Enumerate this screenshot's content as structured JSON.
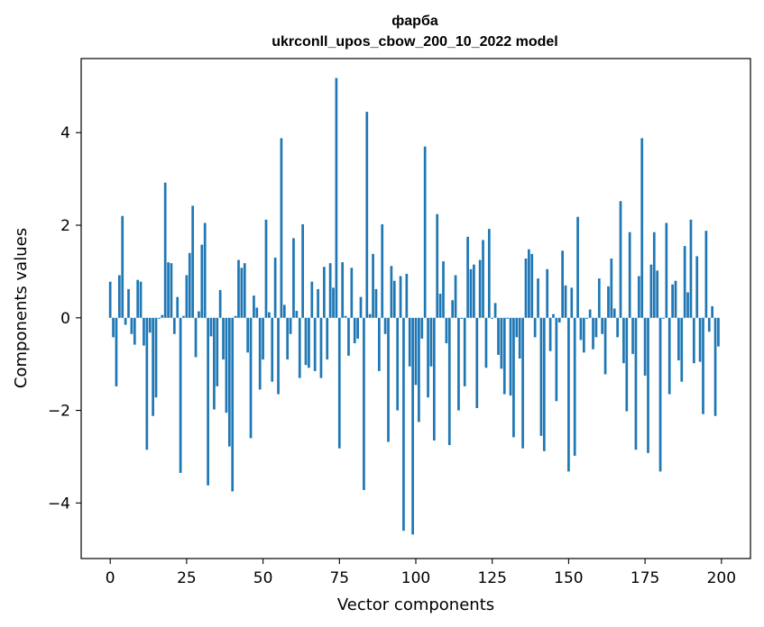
{
  "chart_data": {
    "type": "bar",
    "title": "фарба",
    "subtitle": "ukrconll_upos_cbow_200_10_2022 model",
    "xlabel": "Vector components",
    "ylabel": "Components values",
    "xlim": [
      -9.5,
      209.5
    ],
    "ylim": [
      -5.2,
      5.6
    ],
    "xticks": [
      0,
      25,
      50,
      75,
      100,
      125,
      150,
      175,
      200
    ],
    "xtick_labels": [
      "0",
      "25",
      "50",
      "75",
      "100",
      "125",
      "150",
      "175",
      "200"
    ],
    "yticks": [
      -4,
      -2,
      0,
      2,
      4
    ],
    "ytick_labels": [
      "−4",
      "−2",
      "0",
      "2",
      "4"
    ],
    "grid": false,
    "bar_color": "#1f77b4",
    "x": [
      0,
      1,
      2,
      3,
      4,
      5,
      6,
      7,
      8,
      9,
      10,
      11,
      12,
      13,
      14,
      15,
      16,
      17,
      18,
      19,
      20,
      21,
      22,
      23,
      24,
      25,
      26,
      27,
      28,
      29,
      30,
      31,
      32,
      33,
      34,
      35,
      36,
      37,
      38,
      39,
      40,
      41,
      42,
      43,
      44,
      45,
      46,
      47,
      48,
      49,
      50,
      51,
      52,
      53,
      54,
      55,
      56,
      57,
      58,
      59,
      60,
      61,
      62,
      63,
      64,
      65,
      66,
      67,
      68,
      69,
      70,
      71,
      72,
      73,
      74,
      75,
      76,
      77,
      78,
      79,
      80,
      81,
      82,
      83,
      84,
      85,
      86,
      87,
      88,
      89,
      90,
      91,
      92,
      93,
      94,
      95,
      96,
      97,
      98,
      99,
      100,
      101,
      102,
      103,
      104,
      105,
      106,
      107,
      108,
      109,
      110,
      111,
      112,
      113,
      114,
      115,
      116,
      117,
      118,
      119,
      120,
      121,
      122,
      123,
      124,
      125,
      126,
      127,
      128,
      129,
      130,
      131,
      132,
      133,
      134,
      135,
      136,
      137,
      138,
      139,
      140,
      141,
      142,
      143,
      144,
      145,
      146,
      147,
      148,
      149,
      150,
      151,
      152,
      153,
      154,
      155,
      156,
      157,
      158,
      159,
      160,
      161,
      162,
      163,
      164,
      165,
      166,
      167,
      168,
      169,
      170,
      171,
      172,
      173,
      174,
      175,
      176,
      177,
      178,
      179,
      180,
      181,
      182,
      183,
      184,
      185,
      186,
      187,
      188,
      189,
      190,
      191,
      192,
      193,
      194,
      195,
      196,
      197,
      198,
      199
    ],
    "values": [
      0.78,
      -0.42,
      -1.48,
      0.92,
      2.2,
      -0.15,
      0.62,
      -0.35,
      -0.58,
      0.82,
      0.78,
      -0.6,
      -2.85,
      -0.32,
      -2.12,
      -1.72,
      -0.02,
      0.06,
      2.92,
      1.2,
      1.18,
      -0.35,
      0.45,
      -3.35,
      0.04,
      0.92,
      1.4,
      2.42,
      -0.85,
      0.14,
      1.58,
      2.05,
      -3.62,
      -0.4,
      -1.98,
      -1.48,
      0.6,
      -0.9,
      -2.05,
      -2.78,
      -3.75,
      0.04,
      1.25,
      1.08,
      1.18,
      -0.75,
      -2.6,
      0.48,
      0.22,
      -1.55,
      -0.9,
      2.12,
      0.12,
      -1.38,
      1.3,
      -1.65,
      3.88,
      0.28,
      -0.9,
      -0.35,
      1.72,
      0.15,
      -1.3,
      2.02,
      -1.02,
      -1.08,
      0.78,
      -1.15,
      0.62,
      -1.3,
      1.1,
      -0.9,
      1.18,
      0.65,
      5.18,
      -2.82,
      1.2,
      0.04,
      -0.82,
      1.08,
      -0.55,
      -0.45,
      0.45,
      -3.72,
      4.45,
      0.08,
      1.38,
      0.62,
      -1.15,
      2.02,
      -0.35,
      -2.68,
      1.12,
      0.8,
      -2.0,
      0.9,
      -4.6,
      0.95,
      -1.05,
      -4.68,
      -1.45,
      -2.25,
      -0.45,
      3.7,
      -1.72,
      -1.05,
      -2.65,
      2.24,
      0.52,
      1.22,
      -0.55,
      -2.75,
      0.38,
      0.92,
      -2.0,
      -0.02,
      -1.48,
      1.75,
      1.05,
      1.15,
      -1.95,
      1.25,
      1.68,
      -1.08,
      1.92,
      -0.02,
      0.32,
      -0.8,
      -1.1,
      -1.65,
      -0.02,
      -1.68,
      -2.58,
      -0.42,
      -0.88,
      -2.82,
      1.28,
      1.48,
      1.38,
      -0.42,
      0.85,
      -2.55,
      -2.88,
      1.05,
      -0.72,
      0.08,
      -1.8,
      -0.1,
      1.45,
      0.7,
      -3.32,
      0.65,
      -2.98,
      2.18,
      -0.48,
      -0.75,
      -0.02,
      0.18,
      -0.68,
      -0.42,
      0.85,
      -0.35,
      -1.22,
      0.68,
      1.28,
      0.2,
      -0.42,
      2.52,
      -0.98,
      -2.02,
      1.85,
      -0.78,
      -2.85,
      0.9,
      3.88,
      -1.25,
      -2.92,
      1.15,
      1.85,
      1.02,
      -3.32,
      -0.02,
      2.05,
      -1.65,
      0.72,
      0.8,
      -0.92,
      -1.38,
      1.55,
      0.55,
      2.12,
      -0.98,
      1.33,
      -0.95,
      -2.08,
      1.88,
      -0.3,
      0.25,
      -2.12,
      -0.62
    ]
  }
}
